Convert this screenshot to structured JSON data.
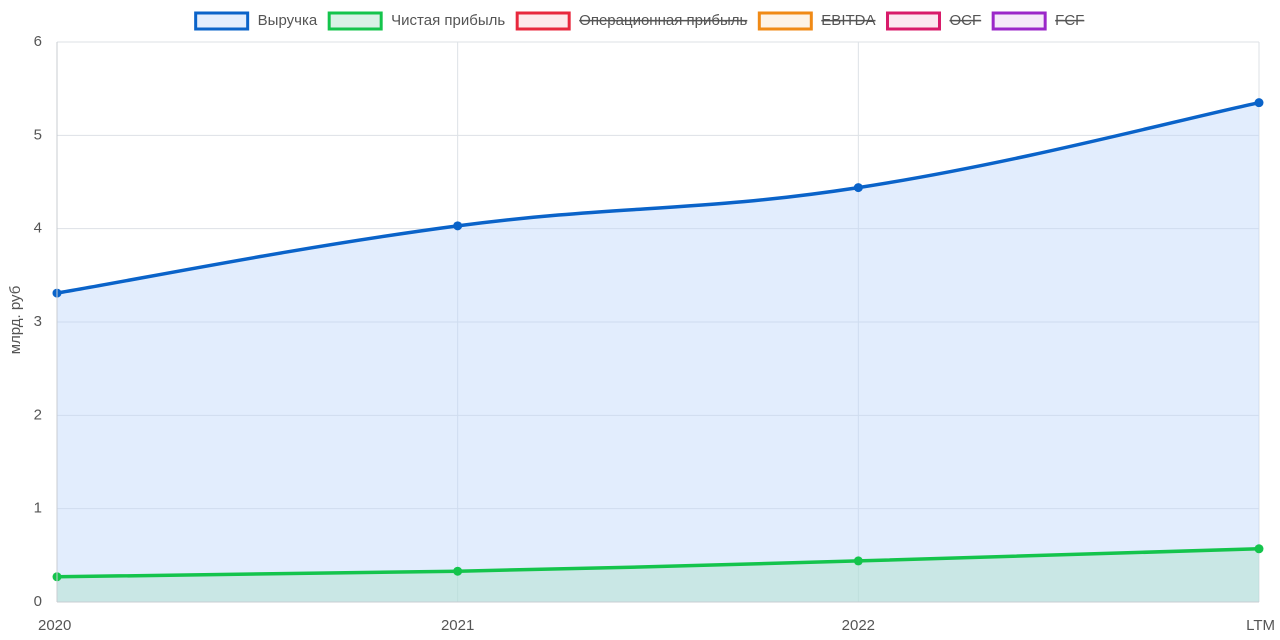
{
  "chart_data": {
    "type": "line",
    "y_label": "млрд. руб",
    "categories": [
      "2020",
      "2021",
      "2022",
      "LTM"
    ],
    "series": [
      {
        "name": "Выручка",
        "color": "#0a63c9",
        "fill": "rgba(190,215,250,0.45)",
        "hidden": false,
        "values": [
          3.31,
          4.03,
          4.44,
          5.35
        ]
      },
      {
        "name": "Чистая прибыль",
        "color": "#14c44c",
        "fill": "rgba(170,225,200,0.45)",
        "hidden": false,
        "values": [
          0.27,
          0.33,
          0.44,
          0.57
        ]
      },
      {
        "name": "Операционная прибыль",
        "color": "#e8283d",
        "fill": "rgba(232,40,61,0.1)",
        "hidden": true,
        "values": [
          null,
          null,
          null,
          null
        ]
      },
      {
        "name": "EBITDA",
        "color": "#f08a16",
        "fill": "rgba(240,138,22,0.1)",
        "hidden": true,
        "values": [
          null,
          null,
          null,
          null
        ]
      },
      {
        "name": "OCF",
        "color": "#d81b6a",
        "fill": "rgba(216,27,106,0.1)",
        "hidden": true,
        "values": [
          null,
          null,
          null,
          null
        ]
      },
      {
        "name": "FCF",
        "color": "#9b27c9",
        "fill": "rgba(155,39,201,0.1)",
        "hidden": true,
        "values": [
          null,
          null,
          null,
          null
        ]
      }
    ],
    "ylim": [
      0,
      6
    ],
    "yticks": [
      0,
      1,
      2,
      3,
      4,
      5,
      6
    ],
    "grid": true
  }
}
